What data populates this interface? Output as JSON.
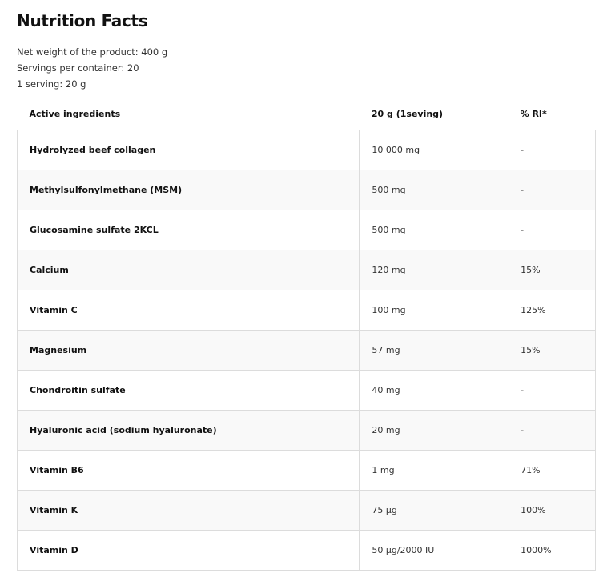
{
  "title": "Nutrition Facts",
  "meta": [
    "Net weight of the product: 400 g",
    "Servings per container: 20",
    "1 serving: 20 g"
  ],
  "table": {
    "headers": [
      "Active ingredients",
      "20 g (1seving)",
      "% RI*"
    ],
    "rows": [
      [
        "Hydrolyzed beef collagen",
        "10 000 mg",
        "-"
      ],
      [
        "Methylsulfonylmethane (MSM)",
        "500 mg",
        "-"
      ],
      [
        "Glucosamine sulfate 2KCL",
        "500 mg",
        "-"
      ],
      [
        "Calcium",
        "120 mg",
        "15%"
      ],
      [
        "Vitamin C",
        "100 mg",
        "125%"
      ],
      [
        "Magnesium",
        "57 mg",
        "15%"
      ],
      [
        "Chondroitin sulfate",
        "40 mg",
        "-"
      ],
      [
        "Hyaluronic acid (sodium hyaluronate)",
        "20 mg",
        "-"
      ],
      [
        "Vitamin B6",
        "1 mg",
        "71%"
      ],
      [
        "Vitamin K",
        "75 µg",
        "100%"
      ],
      [
        "Vitamin D",
        "50 µg/2000 IU",
        "1000%"
      ]
    ]
  }
}
